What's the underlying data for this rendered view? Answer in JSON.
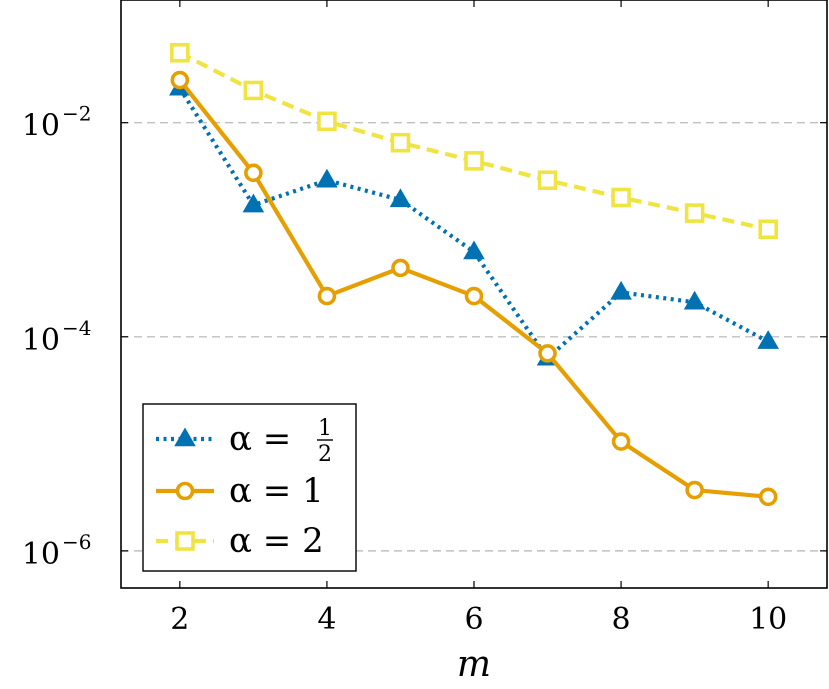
{
  "chart_data": {
    "type": "line",
    "title": "",
    "xlabel": "m",
    "ylabel": "",
    "yscale": "log",
    "xlim": [
      1.2,
      10.8
    ],
    "ylim": [
      4.5e-07,
      0.14
    ],
    "grid": "horizontal dashed at major y ticks",
    "x_ticks": [
      2,
      4,
      6,
      8,
      10
    ],
    "x_tick_labels": [
      "2",
      "4",
      "6",
      "8",
      "10"
    ],
    "y_ticks": [
      1e-06,
      0.0001,
      0.01
    ],
    "y_tick_labels": [
      {
        "base": "10",
        "exp": "−6"
      },
      {
        "base": "10",
        "exp": "−4"
      },
      {
        "base": "10",
        "exp": "−2"
      }
    ],
    "legend_position": "bottom-left",
    "x": [
      2,
      3,
      4,
      5,
      6,
      7,
      8,
      9,
      10
    ],
    "series": [
      {
        "legend": {
          "prefix": "α =",
          "frac_num": "1",
          "frac_den": "2"
        },
        "color": "#0072B2",
        "marker": "triangle",
        "line_style": "dotted",
        "values": [
          0.021,
          0.0017,
          0.0029,
          0.0019,
          0.00062,
          6.3e-05,
          0.00026,
          0.00021,
          9e-05
        ]
      },
      {
        "legend": {
          "text": "α = 1"
        },
        "color": "#E69F00",
        "marker": "circle",
        "line_style": "solid",
        "values": [
          0.025,
          0.0034,
          0.00024,
          0.00044,
          0.00024,
          7e-05,
          1.05e-05,
          3.7e-06,
          3.2e-06
        ]
      },
      {
        "legend": {
          "text": "α = 2"
        },
        "color": "#F0E442",
        "marker": "square",
        "line_style": "dashed",
        "values": [
          0.045,
          0.02,
          0.0103,
          0.0065,
          0.0044,
          0.0029,
          0.002,
          0.00143,
          0.00101
        ]
      }
    ]
  }
}
